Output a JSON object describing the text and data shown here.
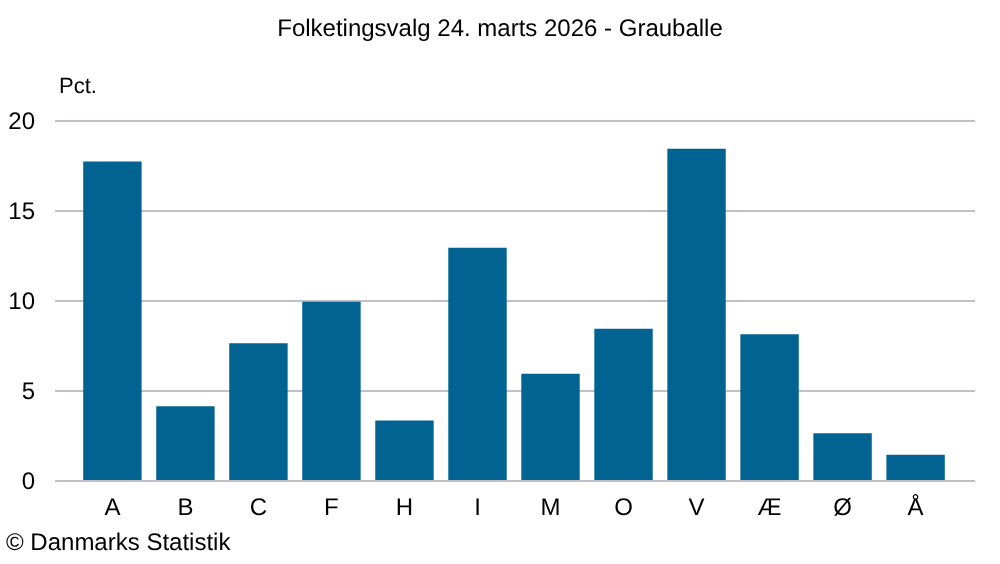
{
  "chart_data": {
    "type": "bar",
    "title": "Folketingsvalg 24. marts 2026 - Grauballe",
    "ylabel": "Pct.",
    "categories": [
      "A",
      "B",
      "C",
      "F",
      "H",
      "I",
      "M",
      "O",
      "V",
      "Æ",
      "Ø",
      "Å"
    ],
    "values": [
      17.7,
      4.1,
      7.6,
      9.9,
      3.3,
      12.9,
      5.9,
      8.4,
      18.4,
      8.1,
      2.6,
      1.4
    ],
    "color": "#006391",
    "ylim": [
      0,
      20
    ],
    "yticks": [
      0,
      5,
      10,
      15,
      20
    ],
    "grid": "y",
    "annotations": [
      "© Danmarks Statistik"
    ]
  }
}
